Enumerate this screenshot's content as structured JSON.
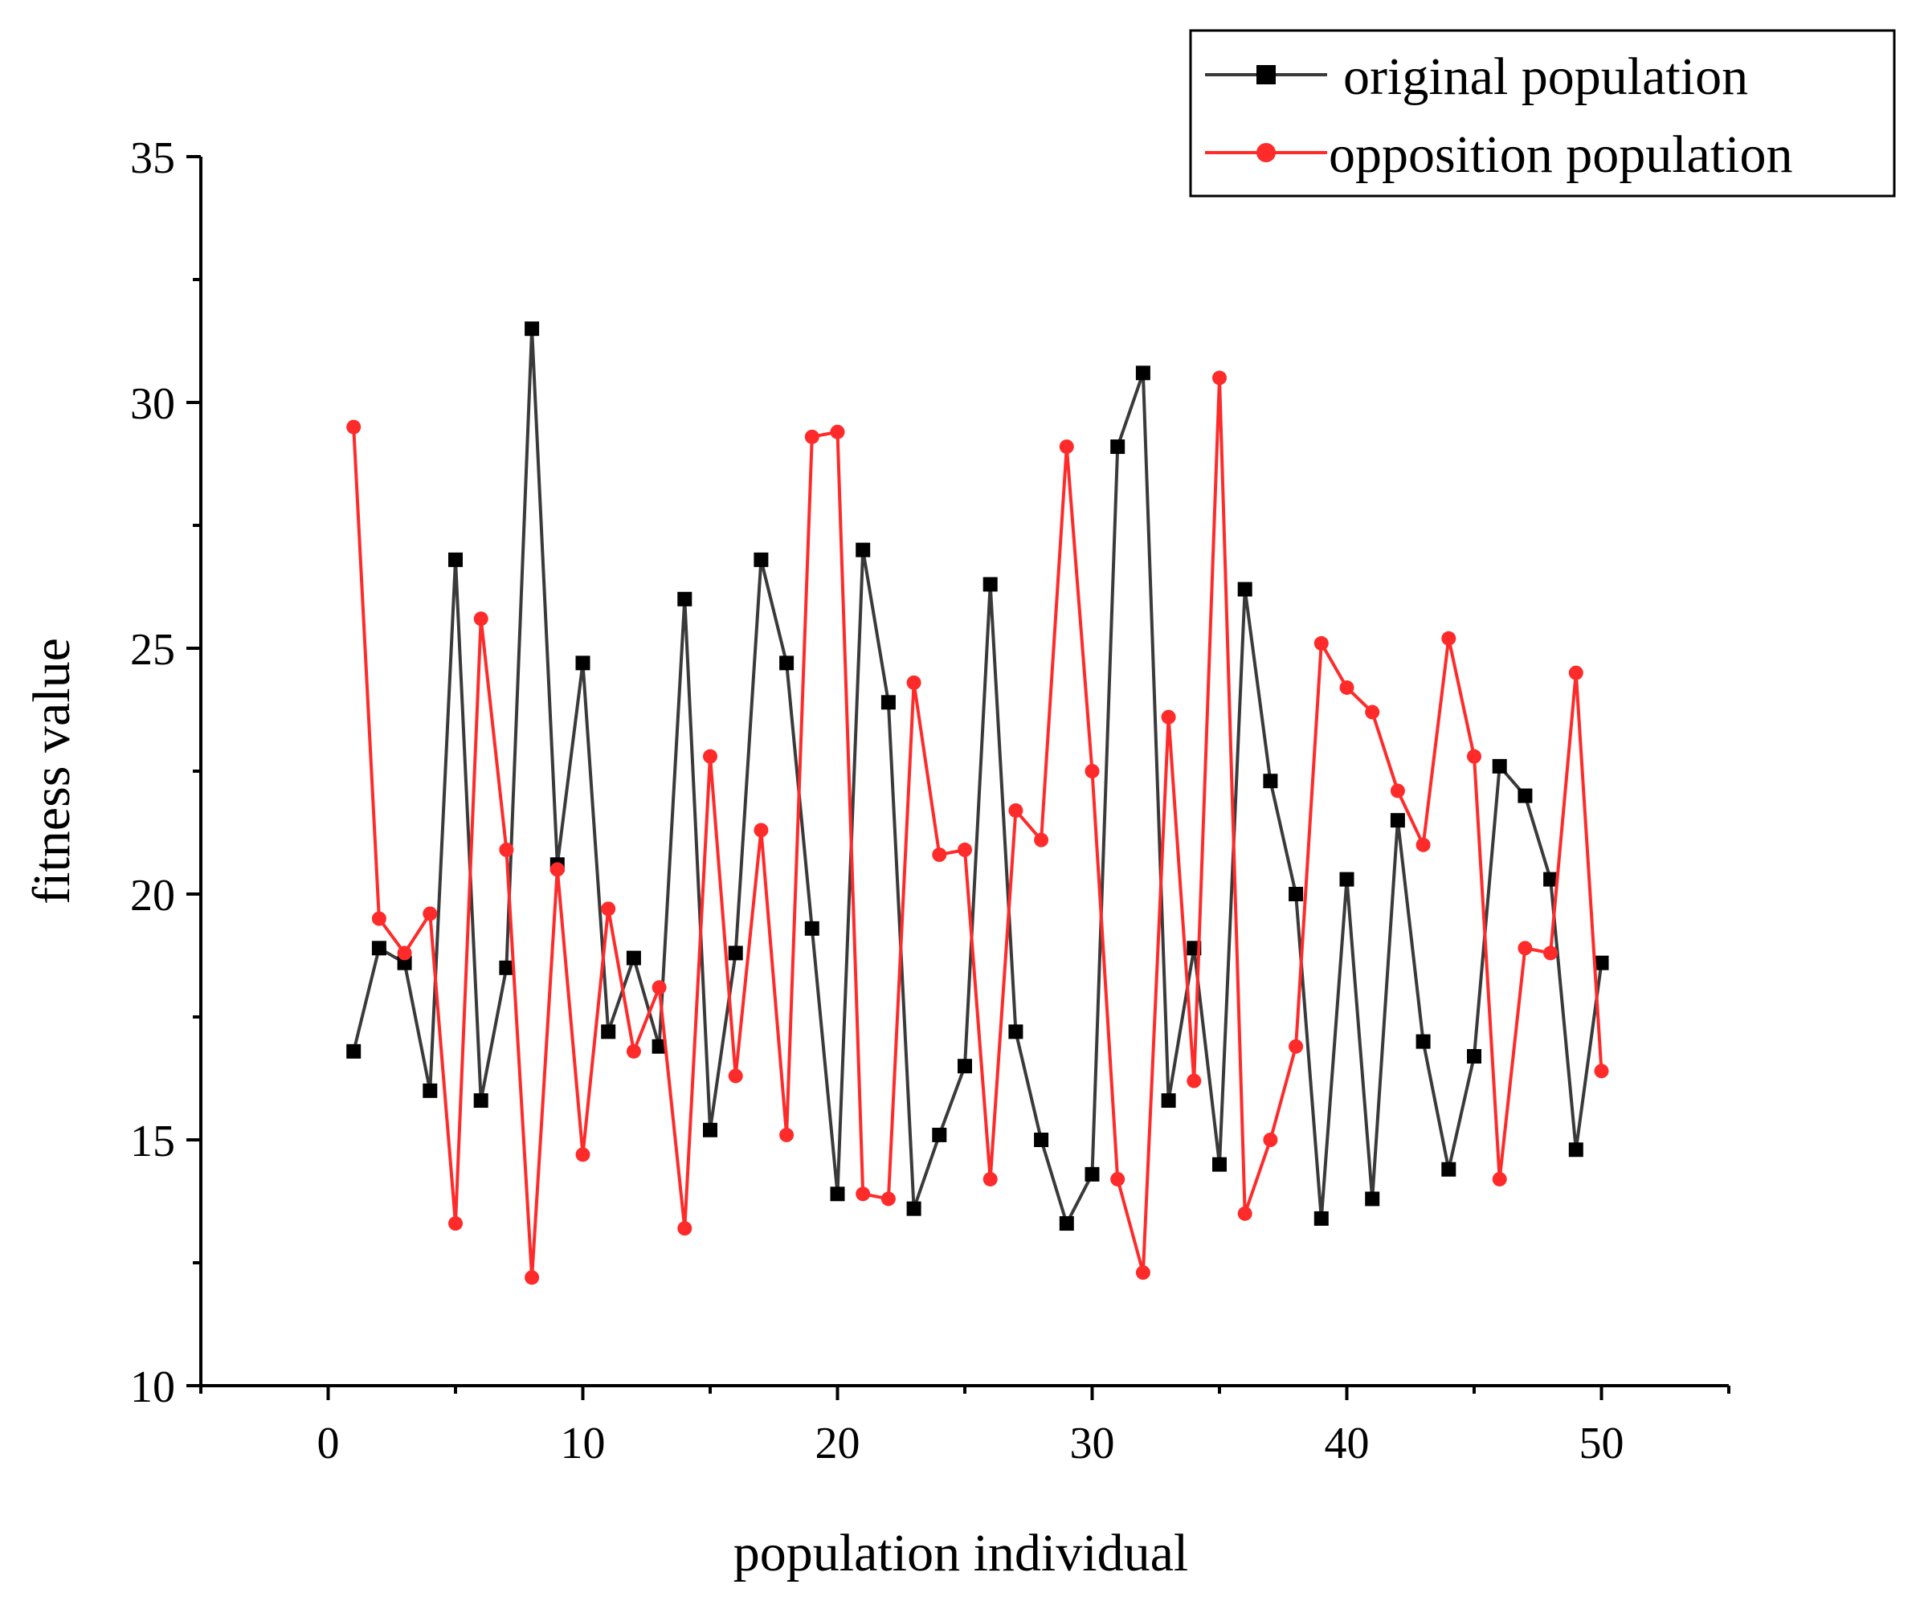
{
  "chart_data": {
    "type": "line",
    "title": "",
    "xlabel": "population individual",
    "ylabel": "fitness value",
    "xlim": [
      -5,
      55
    ],
    "ylim": [
      10,
      35
    ],
    "x_ticks": [
      0,
      10,
      20,
      30,
      40,
      50
    ],
    "y_ticks": [
      10,
      15,
      20,
      25,
      30,
      35
    ],
    "grid": false,
    "legend_position": "top-right",
    "x": [
      1,
      2,
      3,
      4,
      5,
      6,
      7,
      8,
      9,
      10,
      11,
      12,
      13,
      14,
      15,
      16,
      17,
      18,
      19,
      20,
      21,
      22,
      23,
      24,
      25,
      26,
      27,
      28,
      29,
      30,
      31,
      32,
      33,
      34,
      35,
      36,
      37,
      38,
      39,
      40,
      41,
      42,
      43,
      44,
      45,
      46,
      47,
      48,
      49,
      50
    ],
    "series": [
      {
        "name": "original population",
        "color": "#3a3a3a",
        "marker": "square",
        "values": [
          16.8,
          18.9,
          18.6,
          16.0,
          26.8,
          15.8,
          18.5,
          31.5,
          20.6,
          24.7,
          17.2,
          18.7,
          16.9,
          26.0,
          15.2,
          18.8,
          26.8,
          24.7,
          19.3,
          13.9,
          27.0,
          23.9,
          13.6,
          15.1,
          16.5,
          26.3,
          17.2,
          15.0,
          13.3,
          14.3,
          29.1,
          30.6,
          15.8,
          18.9,
          14.5,
          26.2,
          22.3,
          20.0,
          13.4,
          20.3,
          13.8,
          21.5,
          17.0,
          14.4,
          16.7,
          22.6,
          22.0,
          20.3,
          14.8,
          18.6
        ]
      },
      {
        "name": "opposition population",
        "color": "#ff2a2a",
        "marker": "circle",
        "values": [
          29.5,
          19.5,
          18.8,
          19.6,
          13.3,
          25.6,
          20.9,
          12.2,
          20.5,
          14.7,
          19.7,
          16.8,
          18.1,
          13.2,
          22.8,
          16.3,
          21.3,
          15.1,
          29.3,
          29.4,
          13.9,
          13.8,
          24.3,
          20.8,
          20.9,
          14.2,
          21.7,
          21.1,
          29.1,
          22.5,
          14.2,
          12.3,
          23.6,
          16.2,
          30.5,
          13.5,
          15.0,
          16.9,
          25.1,
          24.2,
          23.7,
          22.1,
          21.0,
          25.2,
          22.8,
          14.2,
          18.9,
          18.8,
          24.5,
          16.4
        ]
      }
    ]
  }
}
